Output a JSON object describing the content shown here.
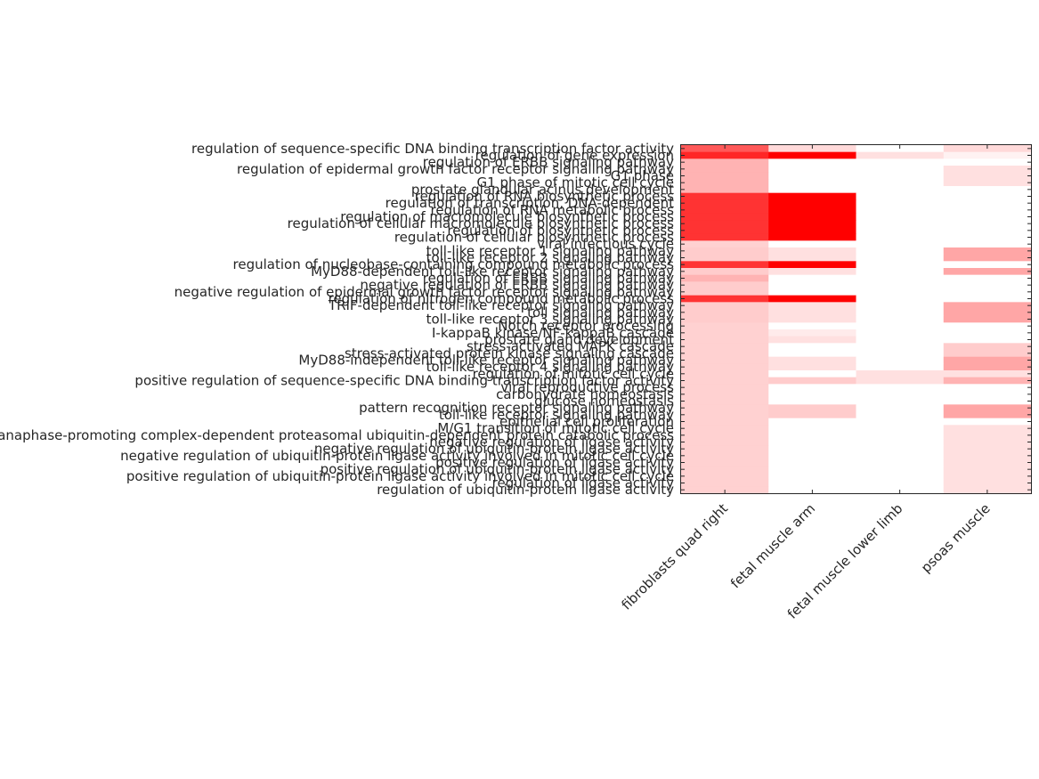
{
  "chart_data": {
    "type": "heatmap",
    "colormap": {
      "low": "#ffffff",
      "high": "#ff0000"
    },
    "grid": false,
    "columns": [
      "fibroblasts quad right",
      "fetal muscle arm",
      "fetal muscle lower limb",
      "psoas muscle"
    ],
    "rows": [
      {
        "label": "regulation of sequence-specific DNA binding transcription factor activity",
        "values": [
          0.65,
          0.15,
          0.0,
          0.15
        ]
      },
      {
        "label": "regulation of gene expression",
        "values": [
          0.85,
          1.0,
          0.12,
          0.05
        ]
      },
      {
        "label": "regulation of ERBB signaling pathway",
        "values": [
          0.3,
          0.0,
          0.0,
          0.0
        ]
      },
      {
        "label": "regulation of epidermal growth factor receptor signaling pathway",
        "values": [
          0.3,
          0.0,
          0.0,
          0.12
        ]
      },
      {
        "label": "G1 phase",
        "values": [
          0.3,
          0.0,
          0.0,
          0.12
        ]
      },
      {
        "label": "G1 phase of mitotic cell cycle",
        "values": [
          0.3,
          0.0,
          0.0,
          0.12
        ]
      },
      {
        "label": "prostate glandular acinus development",
        "values": [
          0.3,
          0.0,
          0.0,
          0.0
        ]
      },
      {
        "label": "regulation of RNA biosynthetic process",
        "values": [
          0.8,
          1.0,
          0.0,
          0.0
        ]
      },
      {
        "label": "regulation of transcription, DNA-dependent",
        "values": [
          0.8,
          1.0,
          0.0,
          0.0
        ]
      },
      {
        "label": "regulation of RNA metabolic process",
        "values": [
          0.8,
          1.0,
          0.0,
          0.0
        ]
      },
      {
        "label": "regulation of macromolecule biosynthetic process",
        "values": [
          0.8,
          1.0,
          0.0,
          0.0
        ]
      },
      {
        "label": "regulation of cellular macromolecule biosynthetic process",
        "values": [
          0.8,
          1.0,
          0.0,
          0.0
        ]
      },
      {
        "label": "regulation of biosynthetic process",
        "values": [
          0.8,
          1.0,
          0.0,
          0.0
        ]
      },
      {
        "label": "regulation of cellular biosynthetic process",
        "values": [
          0.8,
          1.0,
          0.0,
          0.0
        ]
      },
      {
        "label": "viral infectious cycle",
        "values": [
          0.18,
          0.0,
          0.0,
          0.0
        ]
      },
      {
        "label": "toll-like receptor 1 signaling pathway",
        "values": [
          0.2,
          0.12,
          0.0,
          0.35
        ]
      },
      {
        "label": "toll-like receptor 2 signaling pathway",
        "values": [
          0.2,
          0.12,
          0.0,
          0.35
        ]
      },
      {
        "label": "regulation of nucleobase-containing compound metabolic process",
        "values": [
          0.8,
          1.0,
          0.0,
          0.0
        ]
      },
      {
        "label": "MyD88-dependent toll-like receptor signaling pathway",
        "values": [
          0.2,
          0.12,
          0.0,
          0.35
        ]
      },
      {
        "label": "regulation of ERBB signaling pathway",
        "values": [
          0.3,
          0.0,
          0.0,
          0.0
        ]
      },
      {
        "label": "negative regulation of ERBB signaling pathway",
        "values": [
          0.2,
          0.0,
          0.0,
          0.0
        ]
      },
      {
        "label": "negative regulation of epidermal growth factor receptor signaling pathway",
        "values": [
          0.2,
          0.0,
          0.0,
          0.0
        ]
      },
      {
        "label": "regulation of nitrogen compound metabolic process",
        "values": [
          0.8,
          1.0,
          0.0,
          0.0
        ]
      },
      {
        "label": "TRIF-dependent toll-like receptor signaling pathway",
        "values": [
          0.2,
          0.12,
          0.0,
          0.35
        ]
      },
      {
        "label": "toll signaling pathway",
        "values": [
          0.2,
          0.12,
          0.0,
          0.35
        ]
      },
      {
        "label": "toll-like receptor 3 signaling pathway",
        "values": [
          0.2,
          0.12,
          0.0,
          0.35
        ]
      },
      {
        "label": "Notch receptor processing",
        "values": [
          0.18,
          0.0,
          0.0,
          0.0
        ]
      },
      {
        "label": "I-kappaB kinase/NF-kappaB cascade",
        "values": [
          0.18,
          0.08,
          0.0,
          0.0
        ]
      },
      {
        "label": "prostate gland development",
        "values": [
          0.18,
          0.12,
          0.0,
          0.0
        ]
      },
      {
        "label": "stress-activated MAPK cascade",
        "values": [
          0.18,
          0.0,
          0.0,
          0.2
        ]
      },
      {
        "label": "stress-activated protein kinase signaling cascade",
        "values": [
          0.18,
          0.0,
          0.0,
          0.2
        ]
      },
      {
        "label": "MyD88-independent toll-like receptor signaling pathway",
        "values": [
          0.18,
          0.12,
          0.0,
          0.35
        ]
      },
      {
        "label": "toll-like receptor 4 signaling pathway",
        "values": [
          0.18,
          0.12,
          0.0,
          0.35
        ]
      },
      {
        "label": "regulation of mitotic cell cycle",
        "values": [
          0.18,
          0.0,
          0.12,
          0.12
        ]
      },
      {
        "label": "positive regulation of sequence-specific DNA binding transcription factor activity",
        "values": [
          0.18,
          0.2,
          0.12,
          0.3
        ]
      },
      {
        "label": "viral reproductive process",
        "values": [
          0.18,
          0.0,
          0.0,
          0.0
        ]
      },
      {
        "label": "carbohydrate homeostasis",
        "values": [
          0.18,
          0.0,
          0.0,
          0.0
        ]
      },
      {
        "label": "glucose homeostasis",
        "values": [
          0.18,
          0.0,
          0.0,
          0.0
        ]
      },
      {
        "label": "pattern recognition receptor signaling pathway",
        "values": [
          0.18,
          0.2,
          0.0,
          0.35
        ]
      },
      {
        "label": "toll-like receptor signaling pathway",
        "values": [
          0.18,
          0.2,
          0.0,
          0.35
        ]
      },
      {
        "label": "epithelial cell proliferation",
        "values": [
          0.18,
          0.0,
          0.0,
          0.0
        ]
      },
      {
        "label": "M/G1 transition of mitotic cell cycle",
        "values": [
          0.18,
          0.0,
          0.0,
          0.12
        ]
      },
      {
        "label": "anaphase-promoting complex-dependent proteasomal ubiquitin-dependent protein catabolic process",
        "values": [
          0.18,
          0.0,
          0.0,
          0.12
        ]
      },
      {
        "label": "negative regulation of ligase activity",
        "values": [
          0.18,
          0.0,
          0.0,
          0.12
        ]
      },
      {
        "label": "negative regulation of ubiquitin-protein ligase activity",
        "values": [
          0.18,
          0.0,
          0.0,
          0.12
        ]
      },
      {
        "label": "negative regulation of ubiquitin-protein ligase activity involved in mitotic cell cycle",
        "values": [
          0.18,
          0.0,
          0.0,
          0.12
        ]
      },
      {
        "label": "positive regulation of ligase activity",
        "values": [
          0.18,
          0.0,
          0.0,
          0.12
        ]
      },
      {
        "label": "positive regulation of ubiquitin-protein ligase activity",
        "values": [
          0.18,
          0.0,
          0.0,
          0.12
        ]
      },
      {
        "label": "positive regulation of ubiquitin-protein ligase activity involved in mitotic cell cycle",
        "values": [
          0.18,
          0.0,
          0.0,
          0.12
        ]
      },
      {
        "label": "regulation of ligase activity",
        "values": [
          0.18,
          0.0,
          0.0,
          0.12
        ]
      },
      {
        "label": "regulation of ubiquitin-protein ligase activity",
        "values": [
          0.18,
          0.0,
          0.0,
          0.12
        ]
      }
    ]
  }
}
